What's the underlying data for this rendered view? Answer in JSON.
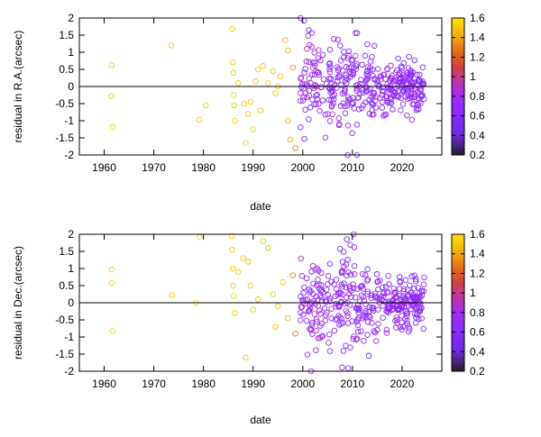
{
  "chart_data": [
    {
      "type": "scatter",
      "ylabel": "residual in R.A.(arcsec)",
      "xlabel": "date",
      "xlim": [
        1955,
        2028
      ],
      "ylim": [
        -2,
        2
      ],
      "xticks": [
        "1960",
        "1970",
        "1980",
        "1990",
        "2000",
        "2010",
        "2020"
      ],
      "yticks": [
        "-2",
        "-1.5",
        "-1",
        "-0.5",
        "0",
        "0.5",
        "1",
        "1.5",
        "2"
      ],
      "colorbar": {
        "min": 0.2,
        "max": 1.6,
        "ticks": [
          "0.2",
          "0.4",
          "0.6",
          "0.8",
          "1",
          "1.2",
          "1.4",
          "1.6"
        ]
      },
      "zero_line": true,
      "points": [
        [
          1961.5,
          0.62,
          1.55
        ],
        [
          1961.5,
          -0.28,
          1.55
        ],
        [
          1961.7,
          -1.18,
          1.55
        ],
        [
          1973.5,
          1.2,
          1.5
        ],
        [
          1979.2,
          -0.97,
          1.55
        ],
        [
          1980.5,
          -0.55,
          1.55
        ],
        [
          1985.8,
          1.68,
          1.55
        ],
        [
          1985.9,
          0.7,
          1.5
        ],
        [
          1986.0,
          0.4,
          1.5
        ],
        [
          1986.1,
          -0.25,
          1.55
        ],
        [
          1986.2,
          -0.55,
          1.5
        ],
        [
          1986.3,
          -1.0,
          1.55
        ],
        [
          1987.0,
          0.1,
          1.5
        ],
        [
          1988.2,
          -0.5,
          1.5
        ],
        [
          1988.5,
          -1.65,
          1.55
        ],
        [
          1989.0,
          -0.8,
          1.5
        ],
        [
          1989.5,
          -0.45,
          1.5
        ],
        [
          1990.0,
          -1.25,
          1.5
        ],
        [
          1990.5,
          0.15,
          1.5
        ],
        [
          1991.0,
          0.5,
          1.5
        ],
        [
          1991.5,
          -0.7,
          1.5
        ],
        [
          1992.0,
          0.6,
          1.5
        ],
        [
          1993.0,
          0.1,
          1.5
        ],
        [
          1994.0,
          0.45,
          1.5
        ],
        [
          1994.5,
          -0.2,
          1.5
        ],
        [
          1995.0,
          0.0,
          1.5
        ],
        [
          1995.5,
          0.3,
          1.5
        ],
        [
          1996.5,
          1.35,
          1.45
        ],
        [
          1997.0,
          1.05,
          1.45
        ],
        [
          1997.0,
          -1.0,
          1.45
        ],
        [
          1997.5,
          -1.55,
          1.4
        ],
        [
          1998.0,
          0.55,
          1.35
        ],
        [
          1998.5,
          -1.8,
          1.3
        ]
      ],
      "dense_clusters": [
        {
          "x": [
            1999.5,
            2003.5
          ],
          "spread": 1.3,
          "count": 60,
          "c": [
            0.55,
            0.95
          ]
        },
        {
          "x": [
            2003.5,
            2007.5
          ],
          "spread": 1.0,
          "count": 50,
          "c": [
            0.55,
            0.85
          ]
        },
        {
          "x": [
            2007.5,
            2011
          ],
          "spread": 1.6,
          "count": 60,
          "c": [
            0.55,
            0.85
          ]
        },
        {
          "x": [
            2011,
            2017
          ],
          "spread": 0.9,
          "count": 80,
          "c": [
            0.55,
            0.85
          ]
        },
        {
          "x": [
            2017,
            2024.5
          ],
          "spread": 0.6,
          "count": 140,
          "c": [
            0.5,
            0.85
          ]
        }
      ]
    },
    {
      "type": "scatter",
      "ylabel": "residual in Dec.(arcsec)",
      "xlabel": "date",
      "xlim": [
        1955,
        2028
      ],
      "ylim": [
        -2,
        2
      ],
      "xticks": [
        "1960",
        "1970",
        "1980",
        "1990",
        "2000",
        "2010",
        "2020"
      ],
      "yticks": [
        "-2",
        "-1.5",
        "-1",
        "-0.5",
        "0",
        "0.5",
        "1",
        "1.5",
        "2"
      ],
      "colorbar": {
        "min": 0.2,
        "max": 1.6,
        "ticks": [
          "0.2",
          "0.4",
          "0.6",
          "0.8",
          "1",
          "1.2",
          "1.4",
          "1.6"
        ]
      },
      "zero_line": true,
      "points": [
        [
          1961.5,
          0.97,
          1.55
        ],
        [
          1961.5,
          0.58,
          1.55
        ],
        [
          1961.7,
          -0.83,
          1.55
        ],
        [
          1973.7,
          0.22,
          1.5
        ],
        [
          1978.5,
          0.0,
          1.55
        ],
        [
          1979.2,
          1.92,
          1.55
        ],
        [
          1985.7,
          1.95,
          1.55
        ],
        [
          1985.8,
          1.55,
          1.5
        ],
        [
          1985.9,
          1.0,
          1.5
        ],
        [
          1986.0,
          0.5,
          1.5
        ],
        [
          1986.1,
          0.2,
          1.55
        ],
        [
          1986.3,
          -0.3,
          1.5
        ],
        [
          1987.0,
          0.9,
          1.5
        ],
        [
          1988.0,
          1.3,
          1.5
        ],
        [
          1988.5,
          -1.6,
          1.55
        ],
        [
          1989.0,
          1.2,
          1.5
        ],
        [
          1989.5,
          0.5,
          1.5
        ],
        [
          1990.0,
          -0.2,
          1.5
        ],
        [
          1991.0,
          0.1,
          1.5
        ],
        [
          1992.0,
          1.8,
          1.5
        ],
        [
          1993.0,
          1.6,
          1.5
        ],
        [
          1994.0,
          0.25,
          1.5
        ],
        [
          1994.5,
          -0.7,
          1.5
        ],
        [
          1995.0,
          -0.1,
          1.5
        ],
        [
          1996.0,
          0.6,
          1.45
        ],
        [
          1997.0,
          -0.45,
          1.45
        ],
        [
          1998.0,
          0.8,
          1.35
        ],
        [
          1998.5,
          -0.9,
          1.3
        ]
      ],
      "dense_clusters": [
        {
          "x": [
            1999.5,
            2003.5
          ],
          "spread": 1.4,
          "count": 60,
          "c": [
            0.55,
            0.95
          ]
        },
        {
          "x": [
            2003.5,
            2007.5
          ],
          "spread": 1.0,
          "count": 50,
          "c": [
            0.55,
            0.85
          ]
        },
        {
          "x": [
            2007.5,
            2011
          ],
          "spread": 1.7,
          "count": 60,
          "c": [
            0.55,
            0.85
          ]
        },
        {
          "x": [
            2011,
            2017
          ],
          "spread": 0.9,
          "count": 80,
          "c": [
            0.55,
            0.85
          ]
        },
        {
          "x": [
            2017,
            2024.5
          ],
          "spread": 0.6,
          "count": 140,
          "c": [
            0.5,
            0.85
          ]
        }
      ]
    }
  ]
}
